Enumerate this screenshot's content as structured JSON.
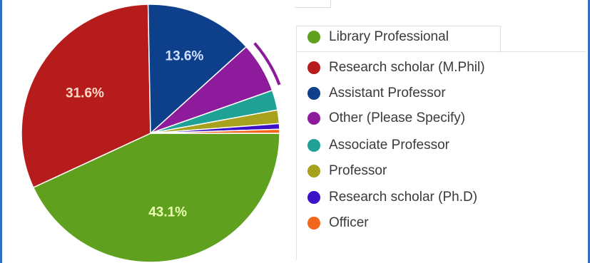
{
  "chart_data": {
    "type": "pie",
    "slices": [
      {
        "label": "Library Professional",
        "value": 43.1,
        "display": "43.1%",
        "color": "#5fa11f",
        "label_color": "#e9ffb0"
      },
      {
        "label": "Research scholar (M.Phil)",
        "value": 31.6,
        "display": "31.6%",
        "color": "#b71c1c",
        "label_color": "#ffd9c8"
      },
      {
        "label": "Assistant Professor",
        "value": 13.6,
        "display": "13.6%",
        "color": "#0e3f8a",
        "label_color": "#cfe1ff"
      },
      {
        "label": "Other (Please Specify)",
        "value": 6.3,
        "display": "",
        "color": "#8e1a9c",
        "label_color": "#ffffff"
      },
      {
        "label": "Associate Professor",
        "value": 2.5,
        "display": "",
        "color": "#1fa195",
        "label_color": "#ffffff"
      },
      {
        "label": "Professor",
        "value": 1.7,
        "display": "",
        "color": "#a7a21e",
        "label_color": "#ffffff"
      },
      {
        "label": "Research scholar (Ph.D)",
        "value": 0.7,
        "display": "",
        "color": "#3a10c9",
        "label_color": "#ffffff"
      },
      {
        "label": "Officer",
        "value": 0.5,
        "display": "",
        "color": "#f2661d",
        "label_color": "#ffffff"
      }
    ],
    "legend_position": "right",
    "highlighted_slice": "Other (Please Specify)"
  }
}
